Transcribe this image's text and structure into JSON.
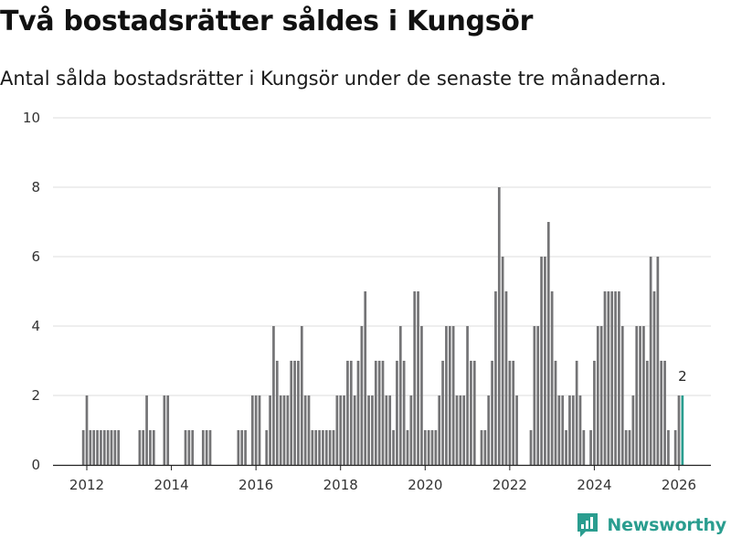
{
  "page": {
    "title": "Två bostadsrätter såldes i Kungsör",
    "subtitle": "Antal sålda bostadsrätter i Kungsör under de senaste tre månaderna."
  },
  "brand": {
    "name": "Newsworthy",
    "color": "#2a9d8f"
  },
  "chart_data": {
    "type": "bar",
    "title": "Två bostadsrätter såldes i Kungsör",
    "subtitle": "Antal sålda bostadsrätter i Kungsör under de senaste tre månaderna.",
    "xlabel": "",
    "ylabel": "",
    "ylim": [
      0,
      10
    ],
    "yticks": [
      "0",
      "2",
      "4",
      "6",
      "8",
      "10"
    ],
    "xticks": [
      "2012",
      "2014",
      "2016",
      "2018",
      "2020",
      "2022",
      "2024",
      "2026"
    ],
    "grid": true,
    "series_color": "#747476",
    "highlight_color": "#2a9d8f",
    "start": "2011-12",
    "end": "2026-01",
    "values": [
      1,
      2,
      1,
      1,
      1,
      1,
      1,
      1,
      1,
      1,
      1,
      0,
      0,
      0,
      0,
      0,
      1,
      1,
      2,
      1,
      1,
      0,
      0,
      2,
      2,
      0,
      0,
      0,
      0,
      1,
      1,
      1,
      0,
      0,
      1,
      1,
      1,
      0,
      0,
      0,
      0,
      0,
      0,
      0,
      1,
      1,
      1,
      0,
      2,
      2,
      2,
      0,
      1,
      2,
      4,
      3,
      2,
      2,
      2,
      3,
      3,
      3,
      4,
      2,
      2,
      1,
      1,
      1,
      1,
      1,
      1,
      1,
      2,
      2,
      2,
      3,
      3,
      2,
      3,
      4,
      5,
      2,
      2,
      3,
      3,
      3,
      2,
      2,
      1,
      3,
      4,
      3,
      1,
      2,
      5,
      5,
      4,
      1,
      1,
      1,
      1,
      2,
      3,
      4,
      4,
      4,
      2,
      2,
      2,
      4,
      3,
      3,
      0,
      1,
      1,
      2,
      3,
      5,
      8,
      6,
      5,
      3,
      3,
      2,
      0,
      0,
      0,
      1,
      4,
      4,
      6,
      6,
      7,
      5,
      3,
      2,
      2,
      1,
      2,
      2,
      3,
      2,
      1,
      0,
      1,
      3,
      4,
      4,
      5,
      5,
      5,
      5,
      5,
      4,
      1,
      1,
      2,
      4,
      4,
      4,
      3,
      6,
      5,
      6,
      3,
      3,
      1,
      0,
      1,
      2,
      2
    ],
    "annotations": [
      {
        "label": "2",
        "value": 2,
        "at": "last"
      }
    ]
  }
}
